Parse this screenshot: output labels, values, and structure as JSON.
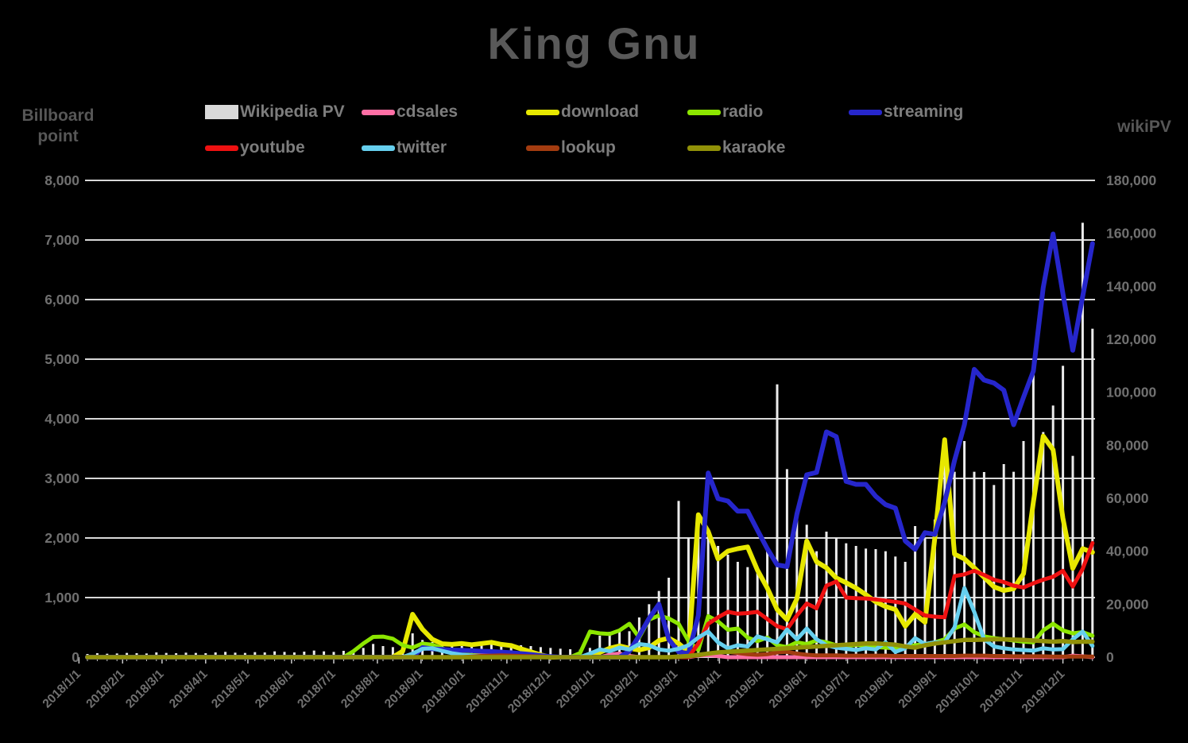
{
  "title": "King Gnu",
  "left_axis": {
    "title": "Billboard\npoint",
    "ticks": [
      "0",
      "1,000",
      "2,000",
      "3,000",
      "4,000",
      "5,000",
      "6,000",
      "7,000",
      "8,000"
    ]
  },
  "right_axis": {
    "title": "wikiPV",
    "ticks": [
      "0",
      "20,000",
      "40,000",
      "60,000",
      "80,000",
      "100,000",
      "120,000",
      "140,000",
      "160,000",
      "180,000"
    ]
  },
  "colors": {
    "background": "#000000",
    "gridline": "#d8d8d8",
    "tick_label": "#707070",
    "title_text": "#595959",
    "legend_text": "#7d7d7d"
  },
  "chart_data": {
    "type": "combo bar+line, dual axis, weekly points",
    "left_ylim": [
      0,
      8000
    ],
    "right_ylim": [
      0,
      180000
    ],
    "grid": "horizontal only, 1000-step on left axis",
    "legend_position": "top, two rows",
    "x_tick_labels": [
      "2018/1/1",
      "2018/2/1",
      "2018/3/1",
      "2018/4/1",
      "2018/5/1",
      "2018/6/1",
      "2018/7/1",
      "2018/8/1",
      "2018/9/1",
      "2018/10/1",
      "2018/11/1",
      "2018/12/1",
      "2019/1/1",
      "2019/2/1",
      "2019/3/1",
      "2019/4/1",
      "2019/5/1",
      "2019/6/1",
      "2019/7/1",
      "2019/8/1",
      "2019/9/1",
      "2019/10/1",
      "2019/11/1",
      "2019/12/1"
    ],
    "x": [
      "2018/1/7",
      "2018/1/14",
      "2018/1/21",
      "2018/1/28",
      "2018/2/4",
      "2018/2/11",
      "2018/2/18",
      "2018/2/25",
      "2018/3/4",
      "2018/3/11",
      "2018/3/18",
      "2018/3/25",
      "2018/4/1",
      "2018/4/8",
      "2018/4/15",
      "2018/4/22",
      "2018/4/29",
      "2018/5/6",
      "2018/5/13",
      "2018/5/20",
      "2018/5/27",
      "2018/6/3",
      "2018/6/10",
      "2018/6/17",
      "2018/6/24",
      "2018/7/1",
      "2018/7/8",
      "2018/7/15",
      "2018/7/22",
      "2018/7/29",
      "2018/8/5",
      "2018/8/12",
      "2018/8/19",
      "2018/8/26",
      "2018/9/2",
      "2018/9/9",
      "2018/9/16",
      "2018/9/23",
      "2018/9/30",
      "2018/10/7",
      "2018/10/14",
      "2018/10/21",
      "2018/10/28",
      "2018/11/4",
      "2018/11/11",
      "2018/11/18",
      "2018/11/25",
      "2018/12/2",
      "2018/12/9",
      "2018/12/16",
      "2018/12/23",
      "2018/12/30",
      "2019/1/6",
      "2019/1/13",
      "2019/1/20",
      "2019/1/27",
      "2019/2/3",
      "2019/2/10",
      "2019/2/17",
      "2019/2/24",
      "2019/3/3",
      "2019/3/10",
      "2019/3/17",
      "2019/3/24",
      "2019/3/31",
      "2019/4/7",
      "2019/4/14",
      "2019/4/21",
      "2019/4/28",
      "2019/5/5",
      "2019/5/12",
      "2019/5/19",
      "2019/5/26",
      "2019/6/2",
      "2019/6/9",
      "2019/6/16",
      "2019/6/23",
      "2019/6/30",
      "2019/7/7",
      "2019/7/14",
      "2019/7/21",
      "2019/7/28",
      "2019/8/4",
      "2019/8/11",
      "2019/8/18",
      "2019/8/25",
      "2019/9/1",
      "2019/9/8",
      "2019/9/15",
      "2019/9/22",
      "2019/9/29",
      "2019/10/6",
      "2019/10/13",
      "2019/10/20",
      "2019/10/27",
      "2019/11/3",
      "2019/11/10",
      "2019/11/17",
      "2019/11/24",
      "2019/12/1",
      "2019/12/8",
      "2019/12/15",
      "2019/12/22"
    ],
    "series": [
      {
        "name": "Wikipedia PV",
        "type": "bar",
        "axis": "right",
        "color": "#ececec",
        "values": [
          1200,
          1500,
          1300,
          1400,
          1600,
          1500,
          1400,
          1800,
          1600,
          1500,
          1700,
          1600,
          1500,
          1800,
          2000,
          1700,
          1600,
          1900,
          1800,
          2200,
          2000,
          1800,
          2100,
          2500,
          2200,
          2000,
          2400,
          2800,
          3500,
          5000,
          4200,
          3800,
          3400,
          9000,
          6500,
          5700,
          5000,
          4500,
          4200,
          4800,
          5400,
          4800,
          5700,
          5200,
          4500,
          4200,
          3800,
          3500,
          3200,
          3000,
          2800,
          3500,
          8100,
          9600,
          10500,
          9800,
          15000,
          20000,
          25000,
          30000,
          59000,
          45000,
          51600,
          48000,
          42000,
          38700,
          36000,
          34000,
          32000,
          40000,
          103000,
          71000,
          55000,
          50000,
          40000,
          47400,
          45000,
          43000,
          42000,
          41000,
          40800,
          40000,
          38000,
          36000,
          49500,
          45000,
          52000,
          80000,
          70000,
          81600,
          70000,
          69900,
          65000,
          72900,
          70000,
          81600,
          112000,
          85000,
          95000,
          110000,
          76000,
          164000,
          124000
        ]
      },
      {
        "name": "cdsales",
        "type": "line",
        "axis": "left",
        "color": "#ff6fa5",
        "values": [
          0,
          0,
          0,
          0,
          0,
          0,
          0,
          0,
          0,
          0,
          0,
          0,
          0,
          0,
          0,
          0,
          0,
          0,
          0,
          0,
          0,
          0,
          0,
          0,
          0,
          0,
          0,
          0,
          0,
          0,
          0,
          0,
          0,
          0,
          0,
          0,
          0,
          0,
          0,
          30,
          60,
          90,
          70,
          50,
          25,
          0,
          0,
          0,
          0,
          0,
          0,
          0,
          0,
          40,
          60,
          20,
          0,
          0,
          0,
          0,
          0,
          0,
          30,
          35,
          20,
          0,
          0,
          0,
          0,
          0,
          0,
          0,
          0,
          0,
          0,
          0,
          0,
          0,
          0,
          0,
          0,
          0,
          0,
          0,
          0,
          0,
          0,
          0,
          0,
          0,
          0,
          0,
          0,
          0,
          0,
          0,
          0,
          0,
          0,
          0,
          25,
          15,
          0
        ]
      },
      {
        "name": "download",
        "type": "line",
        "axis": "left",
        "color": "#e7e800",
        "values": [
          0,
          0,
          0,
          0,
          0,
          0,
          0,
          0,
          0,
          0,
          0,
          0,
          0,
          0,
          0,
          0,
          0,
          0,
          0,
          0,
          0,
          0,
          0,
          0,
          0,
          0,
          0,
          0,
          0,
          0,
          0,
          0,
          100,
          720,
          470,
          300,
          225,
          215,
          230,
          210,
          230,
          250,
          215,
          195,
          140,
          90,
          40,
          0,
          0,
          0,
          0,
          0,
          80,
          150,
          190,
          150,
          120,
          160,
          280,
          320,
          230,
          90,
          2390,
          2110,
          1650,
          1780,
          1820,
          1850,
          1460,
          1160,
          800,
          630,
          980,
          1950,
          1600,
          1500,
          1330,
          1250,
          1160,
          1050,
          930,
          850,
          800,
          520,
          720,
          585,
          2000,
          3650,
          1730,
          1650,
          1500,
          1340,
          1180,
          1120,
          1150,
          1400,
          2600,
          3710,
          3480,
          2330,
          1490,
          1820,
          1760
        ]
      },
      {
        "name": "radio",
        "type": "line",
        "axis": "left",
        "color": "#8ce600",
        "values": [
          0,
          0,
          0,
          0,
          0,
          0,
          0,
          0,
          0,
          0,
          0,
          0,
          0,
          0,
          0,
          0,
          0,
          0,
          0,
          0,
          0,
          0,
          0,
          0,
          0,
          0,
          0,
          100,
          230,
          340,
          345,
          310,
          200,
          160,
          230,
          210,
          150,
          90,
          55,
          35,
          20,
          10,
          0,
          0,
          0,
          0,
          0,
          0,
          0,
          0,
          70,
          430,
          400,
          390,
          450,
          560,
          330,
          630,
          700,
          650,
          560,
          270,
          120,
          690,
          600,
          460,
          480,
          330,
          270,
          330,
          200,
          170,
          250,
          220,
          280,
          250,
          200,
          180,
          210,
          190,
          170,
          160,
          150,
          170,
          200,
          220,
          250,
          300,
          480,
          550,
          420,
          350,
          320,
          300,
          280,
          260,
          250,
          450,
          560,
          450,
          400,
          420,
          360
        ]
      },
      {
        "name": "streaming",
        "type": "line",
        "axis": "left",
        "color": "#2626cc",
        "values": [
          0,
          0,
          0,
          0,
          0,
          0,
          0,
          0,
          0,
          0,
          0,
          0,
          0,
          0,
          0,
          0,
          0,
          0,
          0,
          0,
          0,
          0,
          0,
          0,
          0,
          0,
          0,
          0,
          0,
          0,
          0,
          0,
          0,
          0,
          160,
          140,
          130,
          120,
          115,
          110,
          100,
          95,
          85,
          75,
          60,
          45,
          25,
          10,
          0,
          0,
          0,
          0,
          0,
          0,
          0,
          100,
          360,
          650,
          890,
          300,
          90,
          60,
          700,
          3090,
          2660,
          2620,
          2450,
          2450,
          2130,
          1820,
          1550,
          1520,
          2400,
          3060,
          3100,
          3780,
          3700,
          2950,
          2900,
          2900,
          2700,
          2560,
          2500,
          1950,
          1810,
          2090,
          2060,
          2600,
          3300,
          3900,
          4830,
          4650,
          4600,
          4480,
          3900,
          4360,
          4800,
          6200,
          7100,
          6100,
          5150,
          6050,
          6940
        ]
      },
      {
        "name": "youtube",
        "type": "line",
        "axis": "left",
        "color": "#ee1111",
        "values": [
          0,
          0,
          0,
          0,
          0,
          0,
          0,
          0,
          0,
          0,
          0,
          0,
          0,
          0,
          0,
          0,
          0,
          0,
          0,
          0,
          0,
          0,
          0,
          0,
          0,
          0,
          0,
          0,
          0,
          0,
          0,
          0,
          0,
          0,
          0,
          0,
          0,
          0,
          0,
          0,
          0,
          0,
          0,
          0,
          0,
          0,
          0,
          0,
          0,
          0,
          0,
          0,
          0,
          0,
          0,
          0,
          0,
          0,
          0,
          0,
          0,
          0,
          230,
          560,
          670,
          760,
          730,
          740,
          760,
          640,
          520,
          470,
          700,
          900,
          820,
          1200,
          1270,
          1000,
          990,
          985,
          970,
          950,
          930,
          900,
          800,
          700,
          680,
          670,
          1360,
          1390,
          1450,
          1380,
          1300,
          1260,
          1200,
          1170,
          1240,
          1300,
          1350,
          1450,
          1185,
          1480,
          1915
        ]
      },
      {
        "name": "twitter",
        "type": "line",
        "axis": "left",
        "color": "#66cfee",
        "values": [
          0,
          0,
          0,
          0,
          0,
          0,
          0,
          0,
          0,
          0,
          0,
          0,
          0,
          0,
          0,
          0,
          0,
          0,
          0,
          0,
          0,
          0,
          0,
          0,
          0,
          0,
          0,
          0,
          0,
          0,
          0,
          0,
          0,
          60,
          140,
          150,
          105,
          65,
          40,
          25,
          15,
          10,
          0,
          0,
          0,
          0,
          0,
          0,
          0,
          0,
          0,
          60,
          130,
          100,
          160,
          130,
          220,
          200,
          130,
          110,
          140,
          200,
          330,
          430,
          250,
          150,
          200,
          180,
          350,
          300,
          250,
          465,
          300,
          480,
          300,
          200,
          160,
          140,
          120,
          150,
          130,
          250,
          90,
          150,
          320,
          220,
          250,
          250,
          500,
          1160,
          760,
          300,
          180,
          150,
          130,
          120,
          110,
          150,
          130,
          135,
          300,
          430,
          190
        ]
      },
      {
        "name": "lookup",
        "type": "line",
        "axis": "left",
        "color": "#a33c10",
        "values": [
          0,
          0,
          0,
          0,
          0,
          0,
          0,
          0,
          0,
          0,
          0,
          0,
          0,
          0,
          0,
          0,
          0,
          0,
          0,
          0,
          0,
          0,
          0,
          0,
          0,
          0,
          0,
          0,
          0,
          0,
          0,
          0,
          0,
          0,
          0,
          0,
          0,
          0,
          0,
          10,
          20,
          25,
          30,
          25,
          20,
          15,
          10,
          0,
          0,
          0,
          0,
          0,
          0,
          0,
          0,
          0,
          0,
          0,
          0,
          0,
          0,
          10,
          30,
          60,
          80,
          90,
          70,
          50,
          40,
          50,
          80,
          90,
          60,
          40,
          30,
          30,
          30,
          25,
          25,
          25,
          25,
          25,
          20,
          20,
          20,
          20,
          20,
          20,
          20,
          25,
          25,
          25,
          20,
          20,
          15,
          15,
          15,
          15,
          10,
          10,
          10,
          10,
          10
        ]
      },
      {
        "name": "karaoke",
        "type": "line",
        "axis": "left",
        "color": "#919108",
        "values": [
          0,
          0,
          0,
          0,
          0,
          0,
          0,
          0,
          0,
          0,
          0,
          0,
          0,
          0,
          0,
          0,
          0,
          0,
          0,
          0,
          0,
          0,
          0,
          0,
          0,
          0,
          0,
          0,
          0,
          0,
          0,
          0,
          0,
          0,
          0,
          0,
          0,
          0,
          0,
          0,
          0,
          0,
          0,
          0,
          0,
          0,
          0,
          0,
          0,
          0,
          0,
          0,
          0,
          0,
          0,
          0,
          0,
          0,
          0,
          0,
          10,
          20,
          40,
          60,
          80,
          90,
          100,
          110,
          120,
          130,
          140,
          150,
          160,
          170,
          180,
          190,
          200,
          210,
          220,
          230,
          230,
          220,
          210,
          180,
          160,
          200,
          230,
          250,
          270,
          290,
          290,
          295,
          300,
          300,
          295,
          290,
          280,
          270,
          260,
          270,
          255,
          260,
          260
        ]
      }
    ]
  },
  "legend": [
    {
      "label": "Wikipedia PV",
      "swatch": "bar",
      "color": "#d9d9d9"
    },
    {
      "label": "cdsales",
      "swatch": "line",
      "color": "#ff6fa5"
    },
    {
      "label": "download",
      "swatch": "line",
      "color": "#e7e800"
    },
    {
      "label": "radio",
      "swatch": "line",
      "color": "#8ce600"
    },
    {
      "label": "streaming",
      "swatch": "line",
      "color": "#2626cc"
    },
    {
      "label": "youtube",
      "swatch": "line",
      "color": "#ee1111"
    },
    {
      "label": "twitter",
      "swatch": "line",
      "color": "#66cfee"
    },
    {
      "label": "lookup",
      "swatch": "line",
      "color": "#a33c10"
    },
    {
      "label": "karaoke",
      "swatch": "line",
      "color": "#919108"
    }
  ]
}
